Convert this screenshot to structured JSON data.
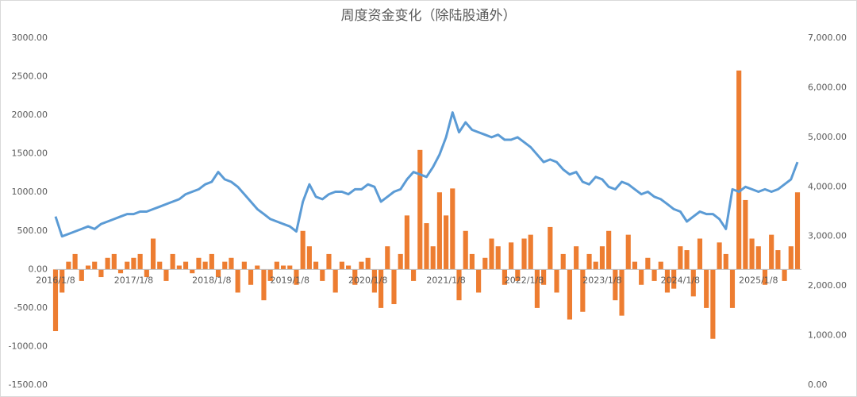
{
  "chart_data": {
    "type": "bar-line",
    "title": "周度资金变化（除陆股通外）",
    "categories": [
      "2016/1/8",
      null,
      null,
      null,
      null,
      null,
      null,
      null,
      null,
      null,
      null,
      null,
      "2017/1/8",
      null,
      null,
      null,
      null,
      null,
      null,
      null,
      null,
      null,
      null,
      null,
      "2018/1/8",
      null,
      null,
      null,
      null,
      null,
      null,
      null,
      null,
      null,
      null,
      null,
      "2019/1/8",
      null,
      null,
      null,
      null,
      null,
      null,
      null,
      null,
      null,
      null,
      null,
      "2020/1/8",
      null,
      null,
      null,
      null,
      null,
      null,
      null,
      null,
      null,
      null,
      null,
      "2021/1/8",
      null,
      null,
      null,
      null,
      null,
      null,
      null,
      null,
      null,
      null,
      null,
      "2022/1/8",
      null,
      null,
      null,
      null,
      null,
      null,
      null,
      null,
      null,
      null,
      null,
      "2023/1/8",
      null,
      null,
      null,
      null,
      null,
      null,
      null,
      null,
      null,
      null,
      null,
      "2024/1/8",
      null,
      null,
      null,
      null,
      null,
      null,
      null,
      null,
      null,
      null,
      null,
      "2025/1/8",
      null,
      null,
      null,
      null,
      null,
      null
    ],
    "series": [
      {
        "kind": "bar",
        "color": "#ed7d31",
        "values": [
          -800,
          -300,
          100,
          200,
          -150,
          50,
          100,
          -100,
          150,
          200,
          -50,
          100,
          150,
          200,
          -100,
          400,
          100,
          -150,
          200,
          50,
          100,
          -50,
          150,
          100,
          200,
          -100,
          100,
          150,
          -300,
          100,
          -200,
          50,
          -400,
          -150,
          100,
          50,
          50,
          -200,
          500,
          300,
          100,
          -150,
          200,
          -300,
          100,
          50,
          -200,
          100,
          150,
          -300,
          -500,
          300,
          -450,
          200,
          700,
          -150,
          1550,
          600,
          300,
          1000,
          700,
          1050,
          -400,
          500,
          200,
          -300,
          150,
          400,
          300,
          -200,
          350,
          -150,
          400,
          450,
          -500,
          -200,
          550,
          -300,
          200,
          -650,
          300,
          -550,
          200,
          100,
          300,
          500,
          -400,
          -600,
          450,
          100,
          -200,
          150,
          -150,
          100,
          -300,
          -250,
          300,
          250,
          -350,
          400,
          -500,
          -900,
          350,
          200,
          -500,
          2580,
          900,
          400,
          300,
          -200,
          450,
          250,
          -150,
          300,
          1000
        ]
      },
      {
        "kind": "line",
        "axis": "y2",
        "color": "#5b9bd5",
        "values": [
          3400,
          3000,
          3050,
          3100,
          3150,
          3200,
          3150,
          3250,
          3300,
          3350,
          3400,
          3450,
          3450,
          3500,
          3500,
          3550,
          3600,
          3650,
          3700,
          3750,
          3850,
          3900,
          3950,
          4050,
          4100,
          4300,
          4150,
          4100,
          4000,
          3850,
          3700,
          3550,
          3450,
          3350,
          3300,
          3250,
          3200,
          3100,
          3700,
          4050,
          3800,
          3750,
          3850,
          3900,
          3900,
          3850,
          3950,
          3950,
          4050,
          4000,
          3700,
          3800,
          3900,
          3950,
          4150,
          4300,
          4250,
          4200,
          4400,
          4650,
          5000,
          5500,
          5100,
          5300,
          5150,
          5100,
          5050,
          5000,
          5050,
          4950,
          4950,
          5000,
          4900,
          4800,
          4650,
          4500,
          4550,
          4500,
          4350,
          4250,
          4300,
          4100,
          4050,
          4200,
          4150,
          4000,
          3950,
          4100,
          4050,
          3950,
          3850,
          3900,
          3800,
          3750,
          3650,
          3550,
          3500,
          3300,
          3400,
          3500,
          3450,
          3450,
          3350,
          3150,
          3950,
          3900,
          4000,
          3950,
          3900,
          3950,
          3900,
          3950,
          4050,
          4150,
          4500
        ]
      }
    ],
    "ylim": [
      -1500,
      3000
    ],
    "yticks": [
      {
        "value": -1500,
        "label": "-1500.00"
      },
      {
        "value": -1000,
        "label": "-1000.00"
      },
      {
        "value": -500,
        "label": "-500.00"
      },
      {
        "value": 0,
        "label": "0.00"
      },
      {
        "value": 500,
        "label": "500.00"
      },
      {
        "value": 1000,
        "label": "1000.00"
      },
      {
        "value": 1500,
        "label": "1500.00"
      },
      {
        "value": 2000,
        "label": "2000.00"
      },
      {
        "value": 2500,
        "label": "2500.00"
      },
      {
        "value": 3000,
        "label": "3000.00"
      }
    ],
    "y2lim": [
      0,
      7000
    ],
    "y2ticks": [
      {
        "value": 0,
        "label": "0.00"
      },
      {
        "value": 1000,
        "label": "1,000.00"
      },
      {
        "value": 2000,
        "label": "2,000.00"
      },
      {
        "value": 3000,
        "label": "3,000.00"
      },
      {
        "value": 4000,
        "label": "4,000.00"
      },
      {
        "value": 5000,
        "label": "5,000.00"
      },
      {
        "value": 6000,
        "label": "6,000.00"
      },
      {
        "value": 7000,
        "label": "7,000.00"
      }
    ],
    "grid": false
  }
}
